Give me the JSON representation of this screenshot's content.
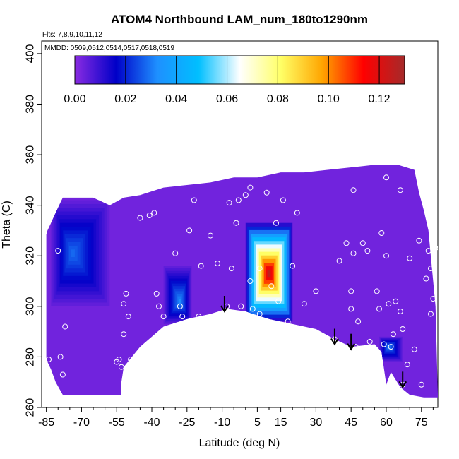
{
  "chart_data": {
    "type": "heatmap",
    "title": "ATOM4 Northbound LAM_num_180to1290nm",
    "subtitle_flights": "Flts: 7,8,9,10,11,12",
    "subtitle_dates": "MMDD: 0509,0512,0514,0517,0518,0519",
    "xlabel": "Latitude (deg N)",
    "ylabel": "Theta (C)",
    "xlim": [
      -87,
      82
    ],
    "ylim": [
      260,
      405
    ],
    "x_ticks": [
      -85,
      -70,
      -55,
      -40,
      -25,
      -10,
      5,
      15,
      30,
      45,
      60,
      75
    ],
    "x_tick_labels": [
      "-85",
      "-70",
      "-55",
      "-40",
      "-25",
      "-10",
      "5",
      "15",
      "30",
      "45",
      "60",
      "75"
    ],
    "y_ticks": [
      260,
      280,
      300,
      320,
      340,
      360,
      380,
      400
    ],
    "y_tick_labels": [
      "260",
      "280",
      "300",
      "320",
      "340",
      "360",
      "380",
      "400"
    ],
    "colorbar": {
      "range": [
        0,
        0.13
      ],
      "ticks": [
        0,
        0.02,
        0.04,
        0.06,
        0.08,
        0.1,
        0.12
      ],
      "tick_labels": [
        "0.00",
        "0.02",
        "0.04",
        "0.06",
        "0.08",
        "0.10",
        "0.12"
      ],
      "colors": [
        "#8a2be2",
        "#0000c8",
        "#1e90ff",
        "#00bfff",
        "#ffffff",
        "#ffff66",
        "#ffa500",
        "#ff0000",
        "#a52a2a"
      ]
    },
    "background_value": 0.003,
    "colors": {
      "fill": "#8a2be2",
      "white": "#ffffff",
      "marker": "#ffffff",
      "arrow": "#000000"
    },
    "domain_top_boundary": [
      [
        -85,
        329
      ],
      [
        -80,
        339
      ],
      [
        -78,
        343
      ],
      [
        -65,
        343
      ],
      [
        -58,
        340
      ],
      [
        -52,
        343
      ],
      [
        -45,
        344
      ],
      [
        -35,
        347
      ],
      [
        -25,
        348
      ],
      [
        -15,
        349
      ],
      [
        -5,
        351
      ],
      [
        5,
        351
      ],
      [
        15,
        353
      ],
      [
        25,
        353
      ],
      [
        35,
        354
      ],
      [
        45,
        355
      ],
      [
        55,
        356
      ],
      [
        65,
        356
      ],
      [
        72,
        354
      ],
      [
        74,
        345
      ],
      [
        76,
        338
      ],
      [
        78,
        330
      ],
      [
        79,
        320
      ],
      [
        80,
        310
      ],
      [
        81,
        300
      ],
      [
        82,
        265
      ]
    ],
    "domain_bottom_boundary": [
      [
        82,
        264
      ],
      [
        76,
        264
      ],
      [
        70,
        265
      ],
      [
        66,
        268
      ],
      [
        64,
        271
      ],
      [
        62,
        274
      ],
      [
        60,
        269
      ],
      [
        58,
        282
      ],
      [
        55,
        285
      ],
      [
        45,
        284
      ],
      [
        38,
        287
      ],
      [
        30,
        291
      ],
      [
        20,
        293
      ],
      [
        10,
        295
      ],
      [
        0,
        298
      ],
      [
        -8,
        299
      ],
      [
        -15,
        297
      ],
      [
        -25,
        295
      ],
      [
        -35,
        292
      ],
      [
        -45,
        284
      ],
      [
        -52,
        276
      ],
      [
        -53,
        270
      ],
      [
        -53,
        265
      ],
      [
        -78,
        265
      ],
      [
        -81,
        270
      ],
      [
        -83,
        275
      ],
      [
        -85,
        279
      ]
    ],
    "features": [
      {
        "name": "south-polar-low",
        "lat_range": [
          -83,
          -58
        ],
        "theta_range": [
          300,
          342
        ],
        "center": [
          -74,
          321
        ],
        "value": 0.028
      },
      {
        "name": "south-midlat-low",
        "lat_range": [
          -35,
          -23
        ],
        "theta_range": [
          293,
          316
        ],
        "center": [
          -28,
          302
        ],
        "value": 0.032
      },
      {
        "name": "tropical-maximum",
        "lat_range": [
          0,
          20
        ],
        "theta_range": [
          294,
          333
        ],
        "center": [
          10,
          313
        ],
        "value": 0.125
      },
      {
        "name": "north-lowlevel-low",
        "lat_range": [
          57,
          67
        ],
        "theta_range": [
          278,
          288
        ],
        "center": [
          61,
          284
        ],
        "value": 0.03
      }
    ],
    "observation_points": [
      [
        -86,
        329
      ],
      [
        -84,
        279
      ],
      [
        -81,
        343
      ],
      [
        -80,
        322
      ],
      [
        -79,
        280
      ],
      [
        -78,
        273
      ],
      [
        -77,
        292
      ],
      [
        -55,
        278
      ],
      [
        -54,
        279
      ],
      [
        -53,
        276
      ],
      [
        -52,
        289
      ],
      [
        -52,
        301
      ],
      [
        -51,
        305
      ],
      [
        -50,
        296
      ],
      [
        -49,
        279
      ],
      [
        -45,
        335
      ],
      [
        -41,
        336
      ],
      [
        -39,
        337
      ],
      [
        -38,
        305
      ],
      [
        -37,
        300
      ],
      [
        -36,
        289
      ],
      [
        -35,
        296
      ],
      [
        -30,
        321
      ],
      [
        -28,
        300
      ],
      [
        -27,
        296
      ],
      [
        -24,
        330
      ],
      [
        -22,
        342
      ],
      [
        -20,
        296
      ],
      [
        -19,
        316
      ],
      [
        -15,
        328
      ],
      [
        -12,
        317
      ],
      [
        -8,
        300
      ],
      [
        -7,
        341
      ],
      [
        -6,
        315
      ],
      [
        -4,
        333
      ],
      [
        -3,
        342
      ],
      [
        -2,
        300
      ],
      [
        0,
        344
      ],
      [
        2,
        347
      ],
      [
        2,
        310
      ],
      [
        3,
        299
      ],
      [
        6,
        315
      ],
      [
        6,
        297
      ],
      [
        9,
        345
      ],
      [
        11,
        308
      ],
      [
        13,
        333
      ],
      [
        14,
        302
      ],
      [
        16,
        342
      ],
      [
        18,
        294
      ],
      [
        20,
        316
      ],
      [
        22,
        337
      ],
      [
        25,
        301
      ],
      [
        30,
        306
      ],
      [
        33,
        288
      ],
      [
        38,
        287
      ],
      [
        40,
        318
      ],
      [
        43,
        325
      ],
      [
        45,
        306
      ],
      [
        45,
        299
      ],
      [
        46,
        346
      ],
      [
        46,
        321
      ],
      [
        47,
        284
      ],
      [
        48,
        294
      ],
      [
        50,
        325
      ],
      [
        52,
        322
      ],
      [
        53,
        286
      ],
      [
        56,
        306
      ],
      [
        57,
        299
      ],
      [
        58,
        329
      ],
      [
        59,
        285
      ],
      [
        60,
        320
      ],
      [
        60,
        351
      ],
      [
        61,
        301
      ],
      [
        62,
        284
      ],
      [
        63,
        289
      ],
      [
        64,
        302
      ],
      [
        66,
        346
      ],
      [
        66,
        298
      ],
      [
        67,
        291
      ],
      [
        67,
        269
      ],
      [
        69,
        277
      ],
      [
        70,
        319
      ],
      [
        72,
        283
      ],
      [
        74,
        326
      ],
      [
        75,
        269
      ],
      [
        77,
        311
      ],
      [
        78,
        322
      ],
      [
        79,
        315
      ],
      [
        79,
        297
      ],
      [
        80,
        303
      ],
      [
        81,
        323
      ]
    ],
    "arrows": [
      {
        "lat": -9,
        "theta": 298
      },
      {
        "lat": 38,
        "theta": 285
      },
      {
        "lat": 45,
        "theta": 283
      },
      {
        "lat": 67,
        "theta": 268
      }
    ]
  }
}
